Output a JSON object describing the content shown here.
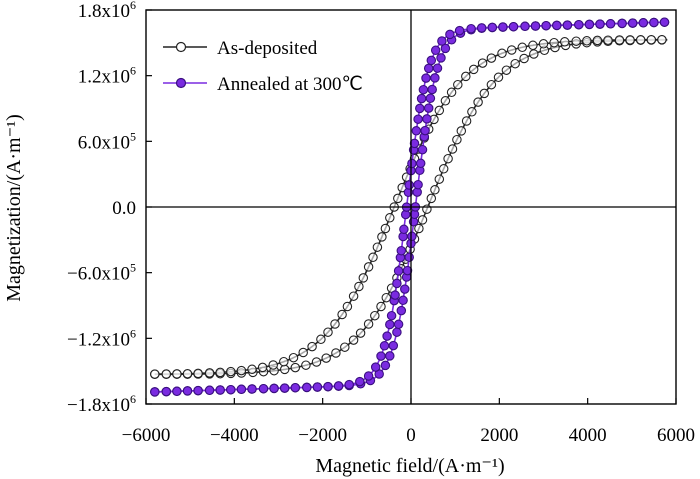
{
  "chart_data": {
    "type": "line",
    "xlabel": "Magnetic field/(A·m⁻¹)",
    "ylabel": "Magnetization/(A·m⁻¹)",
    "xlim": [
      -6000,
      6000
    ],
    "ylim": [
      -1800000,
      1800000
    ],
    "grid": false,
    "zero_lines": true,
    "legend_position": "top-left",
    "x_ticks": [
      {
        "value": -6000,
        "label": "−6000"
      },
      {
        "value": -4000,
        "label": "−4000"
      },
      {
        "value": -2000,
        "label": "−2000"
      },
      {
        "value": 0,
        "label": "0"
      },
      {
        "value": 2000,
        "label": "2000"
      },
      {
        "value": 4000,
        "label": "4000"
      },
      {
        "value": 6000,
        "label": "6000"
      }
    ],
    "y_ticks": [
      {
        "value": 1800000,
        "mant": "1.8x10",
        "exp": "6"
      },
      {
        "value": 1200000,
        "mant": "1.2x10",
        "exp": "6"
      },
      {
        "value": 600000,
        "mant": "6.0x10",
        "exp": "5"
      },
      {
        "value": 0,
        "mant": "0.0",
        "exp": ""
      },
      {
        "value": -600000,
        "mant": "−6.0x10",
        "exp": "5"
      },
      {
        "value": -1200000,
        "mant": "−1.2x10",
        "exp": "6"
      },
      {
        "value": -1800000,
        "mant": "−1.8x10",
        "exp": "6"
      }
    ],
    "series": [
      {
        "name": "As-deposited",
        "color": "#222222",
        "marker": "open-circle",
        "model": {
          "ms": 1530000,
          "hc": 380,
          "w": 1550
        }
      },
      {
        "name": "Annealed at 300℃",
        "color": "#7a2be0",
        "marker": "filled-circle",
        "model": {
          "ms": 1620000,
          "hc": 100,
          "w": 480,
          "slope": 12
        }
      }
    ]
  }
}
